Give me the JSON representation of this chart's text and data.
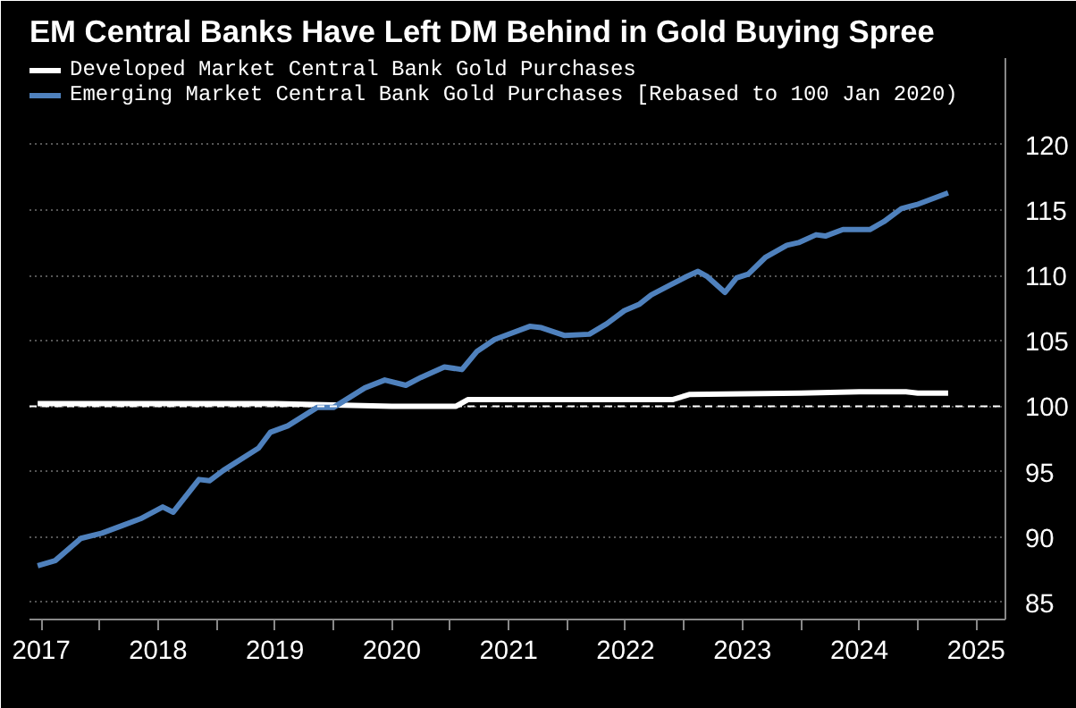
{
  "chart_data": {
    "type": "line",
    "title": "EM Central Banks Have Left DM Behind in Gold Buying Spree",
    "series": [
      {
        "name": "Developed Market Central Bank Gold Purchases",
        "color": "#ffffff",
        "x": [
          2017.47,
          2019.5,
          2020.0,
          2020.5,
          2021.05,
          2021.15,
          2022.9,
          2023.05,
          2024.0,
          2024.5,
          2024.9,
          2025.0,
          2025.26
        ],
        "values": [
          100.2,
          100.2,
          100.1,
          100.0,
          100.0,
          100.5,
          100.5,
          100.9,
          101.0,
          101.1,
          101.1,
          101.0,
          101.0
        ]
      },
      {
        "name": "Emerging Market Central Bank Gold Purchases [Rebased to 100 Jan 2020)",
        "color": "#4f81bd",
        "x": [
          2017.47,
          2017.62,
          2017.84,
          2018.02,
          2018.2,
          2018.35,
          2018.54,
          2018.63,
          2018.85,
          2018.94,
          2019.06,
          2019.36,
          2019.46,
          2019.61,
          2019.86,
          2020.0,
          2020.27,
          2020.44,
          2020.62,
          2020.75,
          2020.95,
          2021.1,
          2021.23,
          2021.38,
          2021.68,
          2021.78,
          2021.98,
          2022.19,
          2022.34,
          2022.49,
          2022.62,
          2022.72,
          2022.87,
          2023.02,
          2023.12,
          2023.2,
          2023.35,
          2023.45,
          2023.55,
          2023.7,
          2023.88,
          2023.98,
          2024.13,
          2024.21,
          2024.36,
          2024.59,
          2024.71,
          2024.86,
          2024.99,
          2025.26
        ],
        "values": [
          87.8,
          88.2,
          89.9,
          90.3,
          90.9,
          91.4,
          92.3,
          91.9,
          94.4,
          94.3,
          95.1,
          96.8,
          98.0,
          98.5,
          99.9,
          99.9,
          101.4,
          102.0,
          101.6,
          102.2,
          103.0,
          102.8,
          104.2,
          105.1,
          106.1,
          106.0,
          105.4,
          105.5,
          106.3,
          107.3,
          107.8,
          108.5,
          109.2,
          109.9,
          110.3,
          109.9,
          108.7,
          109.8,
          110.1,
          111.4,
          112.3,
          112.5,
          113.1,
          113.0,
          113.5,
          113.5,
          114.1,
          115.1,
          115.4,
          116.3
        ]
      }
    ],
    "xlim": [
      2017.4,
      2025.75
    ],
    "xticks": [
      {
        "value": 2017.5,
        "label": "2017"
      },
      {
        "value": 2018,
        "label": null
      },
      {
        "value": 2018.5,
        "label": "2018"
      },
      {
        "value": 2019,
        "label": null
      },
      {
        "value": 2019.5,
        "label": "2019"
      },
      {
        "value": 2020,
        "label": null
      },
      {
        "value": 2020.5,
        "label": "2020"
      },
      {
        "value": 2021,
        "label": null
      },
      {
        "value": 2021.5,
        "label": "2021"
      },
      {
        "value": 2022,
        "label": null
      },
      {
        "value": 2022.5,
        "label": "2022"
      },
      {
        "value": 2023,
        "label": null
      },
      {
        "value": 2023.5,
        "label": "2023"
      },
      {
        "value": 2024,
        "label": null
      },
      {
        "value": 2024.5,
        "label": "2024"
      },
      {
        "value": 2025,
        "label": null
      },
      {
        "value": 2025.5,
        "label": "2025"
      }
    ],
    "ylim": [
      83.7,
      126.6
    ],
    "yticks": [
      85,
      90,
      95,
      100,
      105,
      110,
      115,
      120
    ],
    "ref_lines": [
      {
        "axis": "y",
        "value": 100,
        "label": null,
        "color": "#ffffff",
        "line_style": "dashed"
      }
    ],
    "grid": "y",
    "legend": "top left",
    "line_style": "solid",
    "marker": "none"
  }
}
